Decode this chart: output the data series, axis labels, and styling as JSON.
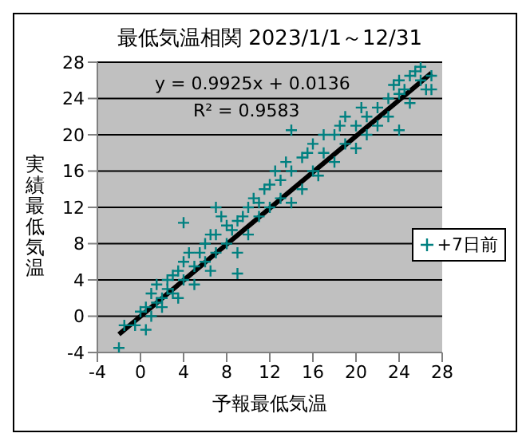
{
  "chart_data": {
    "type": "scatter",
    "title": "最低気温相関  2023/1/1～12/31",
    "xlabel": "予報最低気温",
    "ylabel": "実績最低気温",
    "xlim": [
      -4,
      28
    ],
    "ylim": [
      -4,
      28
    ],
    "xticks": [
      -4,
      0,
      4,
      8,
      12,
      16,
      20,
      24,
      28
    ],
    "yticks": [
      -4,
      0,
      4,
      8,
      12,
      16,
      20,
      24,
      28
    ],
    "grid": "y",
    "legend": "right",
    "marker": "cross",
    "annotations": [
      "y = 0.9925x + 0.0136",
      "R² = 0.9583"
    ],
    "series": [
      {
        "name": "+7日前",
        "color": "#008080",
        "x": [
          -2,
          -1.5,
          -0.5,
          0,
          0.5,
          0.5,
          1,
          1,
          1.5,
          1.5,
          2,
          2,
          2.5,
          2.5,
          3,
          3,
          3.5,
          3.5,
          4,
          4,
          4,
          4.5,
          5,
          5,
          5.5,
          6,
          6,
          6.5,
          6.5,
          7,
          7,
          7,
          7.5,
          8,
          8,
          8.5,
          9,
          9,
          9,
          9.5,
          10,
          10,
          10.5,
          11,
          11,
          11.5,
          12,
          12,
          12.5,
          13,
          13,
          13.5,
          14,
          14,
          14,
          15,
          15,
          15.5,
          16,
          16,
          16.5,
          17,
          17,
          18,
          18,
          18.5,
          19,
          19,
          20,
          20,
          20.5,
          21,
          21,
          22,
          22,
          23,
          23,
          23.5,
          24,
          24,
          24,
          24.5,
          25,
          25,
          25.5,
          26,
          26,
          26.5,
          27,
          27
        ],
        "values": [
          -3.5,
          -1,
          -1,
          0.5,
          1,
          -1.5,
          2.5,
          0,
          1.5,
          3.5,
          1,
          2,
          4,
          3,
          4.5,
          2.5,
          5,
          2,
          6,
          4,
          10.3,
          7,
          3.5,
          5.5,
          7,
          8,
          6,
          9,
          5,
          7,
          9,
          12,
          11,
          8,
          10,
          9.5,
          10.5,
          7,
          4.7,
          11,
          12,
          9,
          13,
          11,
          12.5,
          14,
          12,
          14.5,
          16,
          13,
          15,
          17,
          12.5,
          16,
          20.5,
          17.5,
          14,
          18,
          16,
          19,
          15.5,
          18,
          20,
          17,
          20,
          21,
          19,
          22,
          21,
          18.5,
          23,
          22,
          20,
          23,
          21,
          24,
          22,
          25.5,
          24.5,
          26,
          20.5,
          25,
          26.5,
          23.5,
          27,
          26,
          27.5,
          25,
          26.5,
          25
        ]
      },
      {
        "type": "line",
        "marker": "none",
        "color": "#000000",
        "x": [
          -2,
          27
        ],
        "values": [
          -2,
          26.8
        ]
      }
    ]
  }
}
